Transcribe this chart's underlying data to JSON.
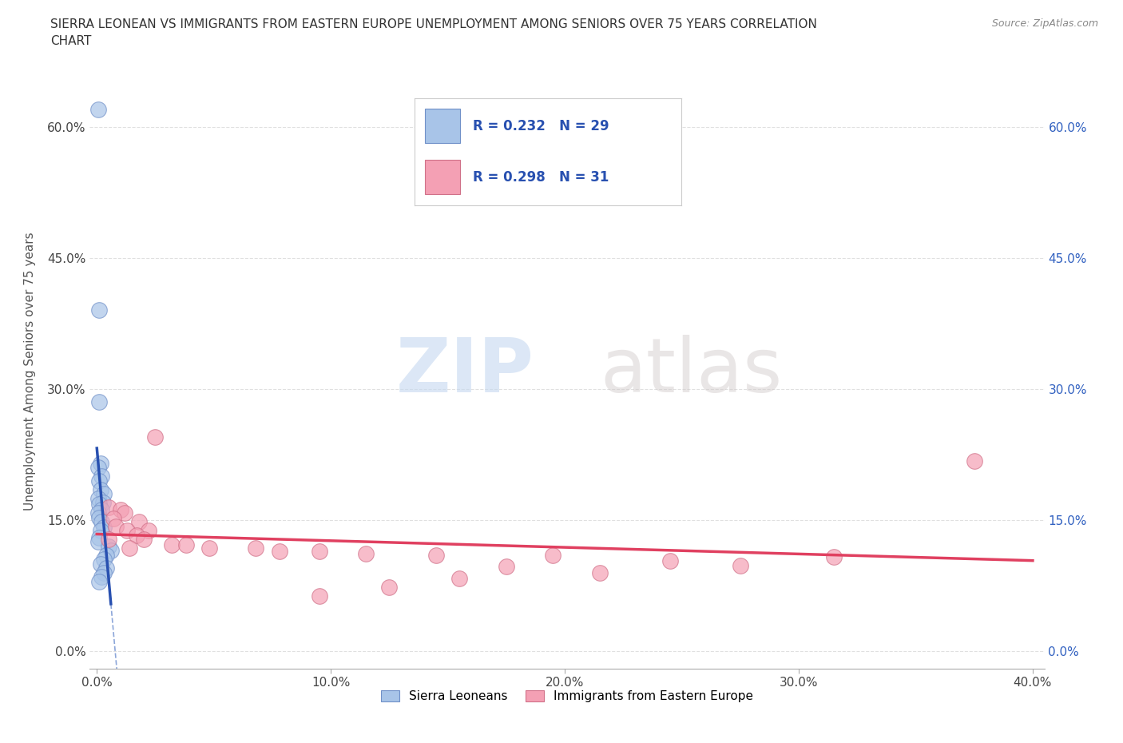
{
  "title": "SIERRA LEONEAN VS IMMIGRANTS FROM EASTERN EUROPE UNEMPLOYMENT AMONG SENIORS OVER 75 YEARS CORRELATION\nCHART",
  "source": "Source: ZipAtlas.com",
  "ylabel": "Unemployment Among Seniors over 75 years",
  "xlim": [
    -0.003,
    0.405
  ],
  "ylim": [
    -0.02,
    0.66
  ],
  "legend_labels": [
    "Sierra Leoneans",
    "Immigrants from Eastern Europe"
  ],
  "r_blue": 0.232,
  "n_blue": 29,
  "r_pink": 0.298,
  "n_pink": 31,
  "blue_color": "#a8c4e8",
  "pink_color": "#f4a0b4",
  "blue_line_color": "#2850b0",
  "pink_line_color": "#e04060",
  "blue_dash_color": "#7090d0",
  "scatter_blue": [
    [
      0.0005,
      0.62
    ],
    [
      0.0008,
      0.39
    ],
    [
      0.001,
      0.285
    ],
    [
      0.0015,
      0.215
    ],
    [
      0.0005,
      0.21
    ],
    [
      0.002,
      0.2
    ],
    [
      0.001,
      0.195
    ],
    [
      0.0015,
      0.185
    ],
    [
      0.003,
      0.18
    ],
    [
      0.0005,
      0.175
    ],
    [
      0.0025,
      0.17
    ],
    [
      0.001,
      0.168
    ],
    [
      0.002,
      0.162
    ],
    [
      0.0005,
      0.158
    ],
    [
      0.001,
      0.153
    ],
    [
      0.002,
      0.148
    ],
    [
      0.003,
      0.142
    ],
    [
      0.0015,
      0.138
    ],
    [
      0.001,
      0.13
    ],
    [
      0.0005,
      0.125
    ],
    [
      0.005,
      0.12
    ],
    [
      0.006,
      0.115
    ],
    [
      0.004,
      0.11
    ],
    [
      0.003,
      0.105
    ],
    [
      0.0015,
      0.1
    ],
    [
      0.004,
      0.095
    ],
    [
      0.003,
      0.09
    ],
    [
      0.002,
      0.085
    ],
    [
      0.001,
      0.08
    ]
  ],
  "scatter_pink": [
    [
      0.025,
      0.245
    ],
    [
      0.005,
      0.165
    ],
    [
      0.01,
      0.162
    ],
    [
      0.012,
      0.158
    ],
    [
      0.007,
      0.152
    ],
    [
      0.018,
      0.148
    ],
    [
      0.008,
      0.143
    ],
    [
      0.013,
      0.138
    ],
    [
      0.022,
      0.138
    ],
    [
      0.017,
      0.133
    ],
    [
      0.005,
      0.128
    ],
    [
      0.02,
      0.128
    ],
    [
      0.032,
      0.122
    ],
    [
      0.038,
      0.122
    ],
    [
      0.014,
      0.118
    ],
    [
      0.048,
      0.118
    ],
    [
      0.068,
      0.118
    ],
    [
      0.078,
      0.114
    ],
    [
      0.095,
      0.114
    ],
    [
      0.115,
      0.112
    ],
    [
      0.145,
      0.11
    ],
    [
      0.195,
      0.11
    ],
    [
      0.315,
      0.108
    ],
    [
      0.245,
      0.103
    ],
    [
      0.175,
      0.097
    ],
    [
      0.375,
      0.218
    ],
    [
      0.155,
      0.083
    ],
    [
      0.215,
      0.09
    ],
    [
      0.125,
      0.073
    ],
    [
      0.275,
      0.098
    ],
    [
      0.095,
      0.063
    ]
  ],
  "watermark_zip": "ZIP",
  "watermark_atlas": "atlas",
  "background_color": "#ffffff",
  "grid_color": "#dddddd"
}
